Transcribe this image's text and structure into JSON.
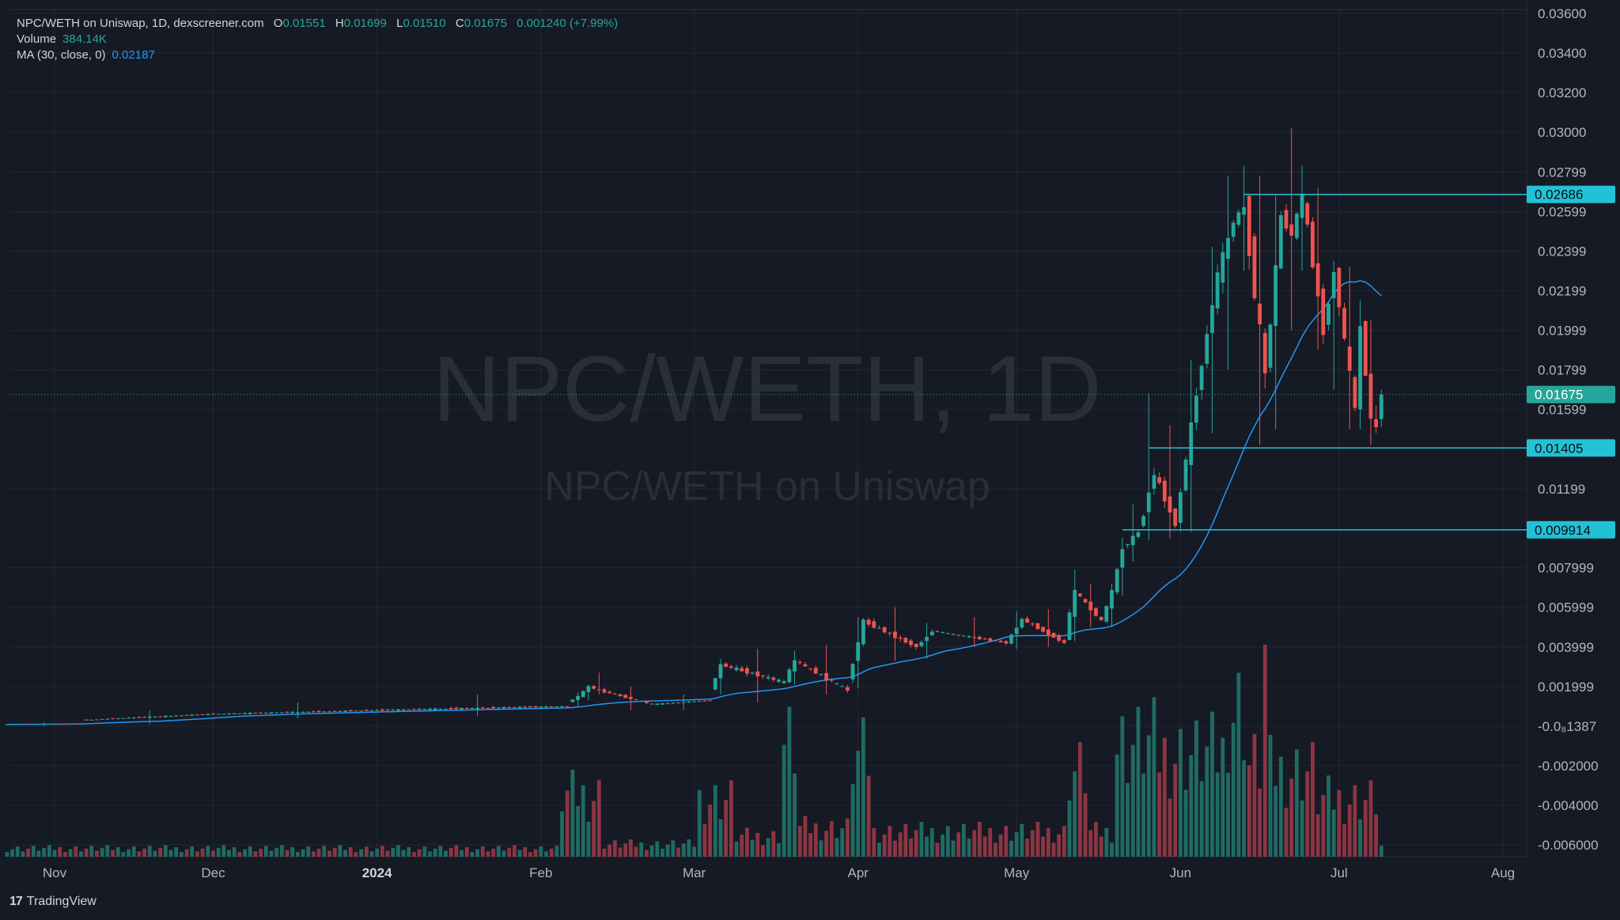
{
  "legend": {
    "title": "NPC/WETH on Uniswap, 1D, dexscreener.com",
    "o_label": "O",
    "o": "0.01551",
    "h_label": "H",
    "h": "0.01699",
    "l_label": "L",
    "l": "0.01510",
    "c_label": "C",
    "c": "0.01675",
    "change": "0.001240 (+7.99%)",
    "volume_label": "Volume",
    "volume": "384.14K",
    "ma_label": "MA (30, close, 0)",
    "ma": "0.02187"
  },
  "watermark": {
    "symbol": "NPC/WETH, 1D",
    "subtitle": "NPC/WETH on Uniswap"
  },
  "footer": {
    "brand": "TradingView",
    "brand_mark": "17"
  },
  "colors": {
    "background": "#161a25",
    "up": "#26a69a",
    "down": "#ef5350",
    "ma": "#2196f3",
    "hline": "#22c2d6",
    "grid": "#232735",
    "text": "#b2b5be"
  },
  "chart_data": {
    "type": "candlestick",
    "title": "NPC/WETH on Uniswap, 1D, dexscreener.com",
    "x_axis": {
      "labels": [
        "Nov",
        "Dec",
        "2024",
        "Feb",
        "Mar",
        "Apr",
        "May",
        "Jun",
        "Jul",
        "Aug"
      ],
      "label_dates": [
        "2023-11-01",
        "2023-12-01",
        "2024-01-01",
        "2024-02-01",
        "2024-03-01",
        "2024-04-01",
        "2024-05-01",
        "2024-06-01",
        "2024-07-01",
        "2024-08-01"
      ]
    },
    "y_axis": {
      "ticks": [
        "0.03600",
        "0.03400",
        "0.03200",
        "0.03000",
        "0.02799",
        "0.02599",
        "0.02399",
        "0.02199",
        "0.01999",
        "0.01799",
        "0.01599",
        "0.01199",
        "0.007999",
        "0.005999",
        "0.003999",
        "0.001999",
        "-0.0₈1387",
        "-0.002000",
        "-0.004000",
        "-0.006000"
      ],
      "tick_values": [
        0.036,
        0.034,
        0.032,
        0.03,
        0.02799,
        0.02599,
        0.02399,
        0.02199,
        0.01999,
        0.01799,
        0.01599,
        0.01199,
        0.007999,
        0.005999,
        0.003999,
        0.001999,
        0.0,
        -0.002,
        -0.004,
        -0.006
      ],
      "range": [
        -0.0066,
        0.0362
      ]
    },
    "price_labels": [
      {
        "value": 0.02686,
        "text": "0.02686",
        "kind": "horizontal-line"
      },
      {
        "value": 0.01675,
        "text": "0.01675",
        "kind": "last-price"
      },
      {
        "value": 0.01405,
        "text": "0.01405",
        "kind": "horizontal-line"
      },
      {
        "value": 0.009914,
        "text": "0.009914",
        "kind": "horizontal-line"
      }
    ],
    "horizontal_lines": [
      {
        "value": 0.02686,
        "start": "2024-06-13"
      },
      {
        "value": 0.01405,
        "start": "2024-05-26"
      },
      {
        "value": 0.009914,
        "start": "2024-05-21"
      }
    ],
    "ma": {
      "period": 30,
      "last": 0.02187
    },
    "candles": [
      {
        "start": "2023-10-23",
        "end": "2023-11-06",
        "o": 8e-05,
        "h": 0.0002,
        "l": 1e-05,
        "c": 0.00012
      },
      {
        "start": "2023-11-07",
        "end": "2023-11-30",
        "o": 0.0003,
        "h": 0.0008,
        "l": 0.0001,
        "c": 0.0006
      },
      {
        "start": "2023-12-01",
        "end": "2024-01-01",
        "o": 0.0006,
        "h": 0.0012,
        "l": 0.0004,
        "c": 0.0008
      },
      {
        "start": "2024-01-02",
        "end": "2024-02-06",
        "o": 0.0008,
        "h": 0.0016,
        "l": 0.0005,
        "c": 0.001
      },
      {
        "start": "2024-02-07",
        "end": "2024-02-08",
        "o": 0.0012,
        "h": 0.0017,
        "l": 0.001,
        "c": 0.0015
      },
      {
        "start": "2024-02-09",
        "end": "2024-02-10",
        "o": 0.0015,
        "h": 0.0021,
        "l": 0.0013,
        "c": 0.002
      },
      {
        "start": "2024-02-11",
        "end": "2024-02-12",
        "o": 0.002,
        "h": 0.0027,
        "l": 0.0016,
        "c": 0.0018
      },
      {
        "start": "2024-02-13",
        "end": "2024-02-22",
        "o": 0.0018,
        "h": 0.002,
        "l": 0.0008,
        "c": 0.0011
      },
      {
        "start": "2024-02-23",
        "end": "2024-03-04",
        "o": 0.0011,
        "h": 0.0016,
        "l": 0.0008,
        "c": 0.0013
      },
      {
        "start": "2024-03-05",
        "end": "2024-03-06",
        "o": 0.0018,
        "h": 0.0034,
        "l": 0.0016,
        "c": 0.0031
      },
      {
        "start": "2024-03-07",
        "end": "2024-03-18",
        "o": 0.0031,
        "h": 0.0039,
        "l": 0.0012,
        "c": 0.0022
      },
      {
        "start": "2024-03-19",
        "end": "2024-03-20",
        "o": 0.0023,
        "h": 0.0038,
        "l": 0.0021,
        "c": 0.0033
      },
      {
        "start": "2024-03-21",
        "end": "2024-03-30",
        "o": 0.0033,
        "h": 0.0041,
        "l": 0.0016,
        "c": 0.0018
      },
      {
        "start": "2024-03-31",
        "end": "2024-04-02",
        "o": 0.0022,
        "h": 0.0055,
        "l": 0.0019,
        "c": 0.0053
      },
      {
        "start": "2024-04-03",
        "end": "2024-04-12",
        "o": 0.0053,
        "h": 0.006,
        "l": 0.0033,
        "c": 0.004
      },
      {
        "start": "2024-04-13",
        "end": "2024-04-15",
        "o": 0.004,
        "h": 0.0052,
        "l": 0.0034,
        "c": 0.0048
      },
      {
        "start": "2024-04-16",
        "end": "2024-04-29",
        "o": 0.0048,
        "h": 0.0055,
        "l": 0.004,
        "c": 0.0042
      },
      {
        "start": "2024-04-30",
        "end": "2024-05-02",
        "o": 0.0042,
        "h": 0.0058,
        "l": 0.0039,
        "c": 0.0054
      },
      {
        "start": "2024-05-03",
        "end": "2024-05-10",
        "o": 0.0054,
        "h": 0.0059,
        "l": 0.004,
        "c": 0.0042
      },
      {
        "start": "2024-05-11",
        "end": "2024-05-12",
        "o": 0.0045,
        "h": 0.0079,
        "l": 0.0043,
        "c": 0.0068
      },
      {
        "start": "2024-05-13",
        "end": "2024-05-17",
        "o": 0.0068,
        "h": 0.0072,
        "l": 0.005,
        "c": 0.0053
      },
      {
        "start": "2024-05-18",
        "end": "2024-05-19",
        "o": 0.0053,
        "h": 0.0072,
        "l": 0.005,
        "c": 0.0068
      },
      {
        "start": "2024-05-20",
        "end": "2024-05-21",
        "o": 0.0068,
        "h": 0.0095,
        "l": 0.0066,
        "c": 0.009
      },
      {
        "start": "2024-05-22",
        "end": "2024-05-24",
        "o": 0.009,
        "h": 0.0112,
        "l": 0.0083,
        "c": 0.0098
      },
      {
        "start": "2024-05-25",
        "end": "2024-05-27",
        "o": 0.0098,
        "h": 0.0168,
        "l": 0.0094,
        "c": 0.0128
      },
      {
        "start": "2024-05-28",
        "end": "2024-05-31",
        "o": 0.0128,
        "h": 0.0152,
        "l": 0.0095,
        "c": 0.0102
      },
      {
        "start": "2024-06-01",
        "end": "2024-06-04",
        "o": 0.0102,
        "h": 0.0185,
        "l": 0.0098,
        "c": 0.0168
      },
      {
        "start": "2024-06-05",
        "end": "2024-06-08",
        "o": 0.0168,
        "h": 0.0242,
        "l": 0.0148,
        "c": 0.0228
      },
      {
        "start": "2024-06-09",
        "end": "2024-06-11",
        "o": 0.0228,
        "h": 0.0278,
        "l": 0.018,
        "c": 0.0255
      },
      {
        "start": "2024-06-12",
        "end": "2024-06-13",
        "o": 0.0255,
        "h": 0.0283,
        "l": 0.023,
        "c": 0.0262
      },
      {
        "start": "2024-06-14",
        "end": "2024-06-17",
        "o": 0.0262,
        "h": 0.0278,
        "l": 0.0142,
        "c": 0.0178
      },
      {
        "start": "2024-06-18",
        "end": "2024-06-20",
        "o": 0.0178,
        "h": 0.0268,
        "l": 0.015,
        "c": 0.0258
      },
      {
        "start": "2024-06-21",
        "end": "2024-06-22",
        "o": 0.0258,
        "h": 0.0302,
        "l": 0.02,
        "c": 0.0248
      },
      {
        "start": "2024-06-23",
        "end": "2024-06-24",
        "o": 0.0248,
        "h": 0.0283,
        "l": 0.023,
        "c": 0.0268
      },
      {
        "start": "2024-06-25",
        "end": "2024-06-28",
        "o": 0.0268,
        "h": 0.0272,
        "l": 0.019,
        "c": 0.02
      },
      {
        "start": "2024-06-29",
        "end": "2024-06-30",
        "o": 0.02,
        "h": 0.0235,
        "l": 0.017,
        "c": 0.023
      },
      {
        "start": "2024-07-01",
        "end": "2024-07-04",
        "o": 0.023,
        "h": 0.0232,
        "l": 0.015,
        "c": 0.016
      },
      {
        "start": "2024-07-05",
        "end": "2024-07-05",
        "o": 0.016,
        "h": 0.0215,
        "l": 0.015,
        "c": 0.0202
      },
      {
        "start": "2024-07-06",
        "end": "2024-07-07",
        "o": 0.0202,
        "h": 0.0205,
        "l": 0.0142,
        "c": 0.0155
      },
      {
        "start": "2024-07-08",
        "end": "2024-07-08",
        "o": 0.0155,
        "h": 0.0162,
        "l": 0.0148,
        "c": 0.0151
      },
      {
        "start": "2024-07-09",
        "end": "2024-07-09",
        "o": 0.01551,
        "h": 0.01699,
        "l": 0.0151,
        "c": 0.01675
      }
    ],
    "volume_estimates": [
      {
        "start": "2023-10-23",
        "end": "2024-02-04",
        "level": 0.04
      },
      {
        "start": "2024-02-05",
        "end": "2024-02-12",
        "level": 0.3
      },
      {
        "start": "2024-02-13",
        "end": "2024-03-01",
        "level": 0.06
      },
      {
        "start": "2024-03-02",
        "end": "2024-03-08",
        "level": 0.28
      },
      {
        "start": "2024-03-09",
        "end": "2024-03-17",
        "level": 0.1
      },
      {
        "start": "2024-03-18",
        "end": "2024-03-20",
        "level": 0.55
      },
      {
        "start": "2024-03-21",
        "end": "2024-03-30",
        "level": 0.14
      },
      {
        "start": "2024-03-31",
        "end": "2024-04-03",
        "level": 0.48
      },
      {
        "start": "2024-04-04",
        "end": "2024-05-10",
        "level": 0.12
      },
      {
        "start": "2024-05-11",
        "end": "2024-05-14",
        "level": 0.42
      },
      {
        "start": "2024-05-15",
        "end": "2024-05-19",
        "level": 0.12
      },
      {
        "start": "2024-05-20",
        "end": "2024-05-27",
        "level": 0.55
      },
      {
        "start": "2024-05-28",
        "end": "2024-06-09",
        "level": 0.5
      },
      {
        "start": "2024-06-10",
        "end": "2024-06-13",
        "level": 0.72
      },
      {
        "start": "2024-06-14",
        "end": "2024-06-16",
        "level": 0.45
      },
      {
        "start": "2024-06-17",
        "end": "2024-06-17",
        "level": 1.0
      },
      {
        "start": "2024-06-18",
        "end": "2024-06-26",
        "level": 0.42
      },
      {
        "start": "2024-06-27",
        "end": "2024-07-08",
        "level": 0.28
      },
      {
        "start": "2024-07-09",
        "end": "2024-07-09",
        "level": 0.05
      }
    ]
  }
}
